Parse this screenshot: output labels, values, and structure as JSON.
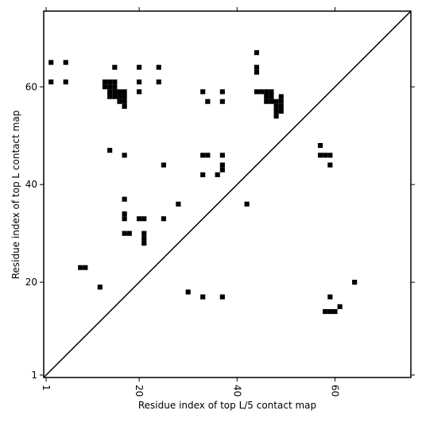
{
  "chart_data": {
    "type": "scatter",
    "marker": "square",
    "color": "#000000",
    "diagonal": true,
    "xlabel": "Residue index of top L/5 contact map",
    "ylabel": "Residue index of top L contact map",
    "xlim": [
      0.5,
      75.5
    ],
    "ylim": [
      0.5,
      75.5
    ],
    "xticks": [
      1,
      20,
      40,
      60
    ],
    "yticks": [
      1,
      20,
      40,
      60
    ],
    "x": [
      2,
      5,
      2,
      5,
      13,
      14,
      15,
      13,
      14,
      15,
      14,
      15,
      16,
      17,
      14,
      15,
      16,
      17,
      16,
      17,
      17,
      15,
      20,
      24,
      20,
      24,
      20,
      33,
      34,
      37,
      37,
      44,
      44,
      44,
      44,
      45,
      46,
      47,
      46,
      47,
      46,
      47,
      48,
      48,
      49,
      48,
      49,
      48,
      49,
      49,
      14,
      17,
      25,
      33,
      34,
      37,
      37,
      37,
      33,
      36,
      57,
      57,
      58,
      59,
      59,
      17,
      28,
      42,
      17,
      17,
      20,
      21,
      25,
      17,
      18,
      21,
      21,
      21,
      8,
      9,
      12,
      30,
      33,
      37,
      59,
      61,
      64,
      58,
      59,
      60
    ],
    "y": [
      65,
      65,
      61,
      61,
      61,
      61,
      61,
      60,
      60,
      60,
      59,
      59,
      59,
      59,
      58,
      58,
      58,
      58,
      57,
      57,
      56,
      64,
      64,
      64,
      61,
      61,
      59,
      59,
      57,
      59,
      57,
      67,
      64,
      63,
      59,
      59,
      59,
      59,
      58,
      58,
      57,
      57,
      57,
      56,
      56,
      55,
      55,
      54,
      58,
      57,
      47,
      46,
      44,
      46,
      46,
      46,
      44,
      43,
      42,
      42,
      48,
      46,
      46,
      46,
      44,
      37,
      36,
      36,
      34,
      33,
      33,
      33,
      33,
      30,
      30,
      30,
      29,
      28,
      23,
      23,
      19,
      18,
      17,
      17,
      17,
      15,
      20,
      14,
      14,
      14
    ]
  }
}
